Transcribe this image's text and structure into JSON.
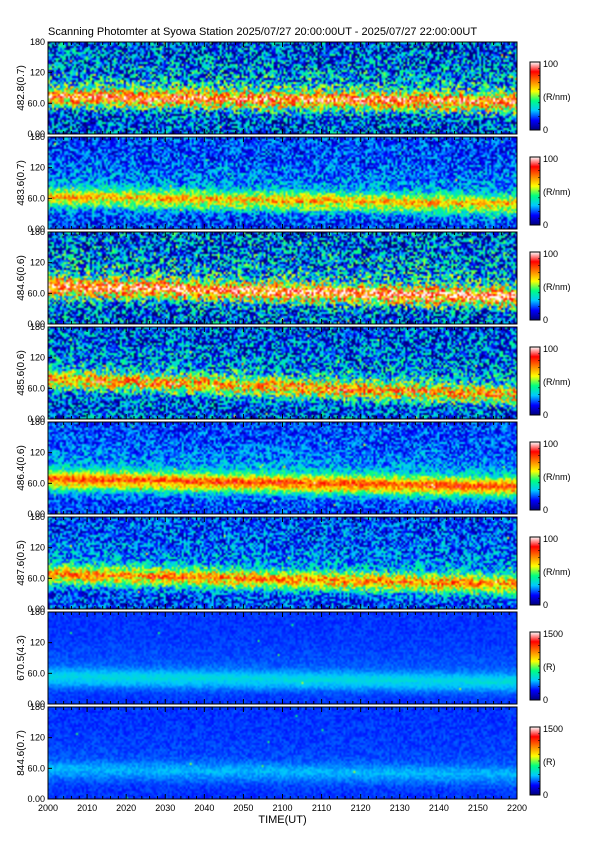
{
  "title": "Scanning Photomter at Syowa Station  2025/07/27 20:00:00UT - 2025/07/27 22:00:00UT",
  "chart_data": {
    "type": "heatmap",
    "xlabel": "TIME(UT)",
    "x_tick_labels": [
      "2000",
      "2010",
      "2020",
      "2030",
      "2040",
      "2050",
      "2100",
      "2110",
      "2120",
      "2130",
      "2140",
      "2150",
      "2200"
    ],
    "y_tick_labels": [
      "0.00",
      "60.0",
      "120",
      "180"
    ],
    "ylim": [
      0,
      180
    ],
    "colorscale": [
      "#00007a",
      "#0000ff",
      "#00c8ff",
      "#00ff80",
      "#ffff00",
      "#ff8000",
      "#ff0000",
      "#ffffff"
    ],
    "panels": [
      {
        "ylabel": "482.8(0.7)",
        "unit": "(R/nm)",
        "cbar_min": "0",
        "cbar_max": "100",
        "band_start": 70,
        "band_end": 60,
        "intensity": 0.55,
        "noise": 0.55
      },
      {
        "ylabel": "483.6(0.7)",
        "unit": "(R/nm)",
        "cbar_min": "0",
        "cbar_max": "100",
        "band_start": 60,
        "band_end": 45,
        "intensity": 0.4,
        "noise": 0.3
      },
      {
        "ylabel": "484.6(0.6)",
        "unit": "(R/nm)",
        "cbar_min": "0",
        "cbar_max": "100",
        "band_start": 70,
        "band_end": 50,
        "intensity": 0.6,
        "noise": 0.6
      },
      {
        "ylabel": "485.6(0.6)",
        "unit": "(R/nm)",
        "cbar_min": "0",
        "cbar_max": "100",
        "band_start": 75,
        "band_end": 45,
        "intensity": 0.45,
        "noise": 0.5
      },
      {
        "ylabel": "486.4(0.6)",
        "unit": "(R/nm)",
        "cbar_min": "0",
        "cbar_max": "100",
        "band_start": 65,
        "band_end": 50,
        "intensity": 0.5,
        "noise": 0.25
      },
      {
        "ylabel": "487.6(0.5)",
        "unit": "(R/nm)",
        "cbar_min": "0",
        "cbar_max": "100",
        "band_start": 65,
        "band_end": 45,
        "intensity": 0.45,
        "noise": 0.35
      },
      {
        "ylabel": "670.5(4.3)",
        "unit": "(R)",
        "cbar_min": "0",
        "cbar_max": "1500",
        "band_start": 50,
        "band_end": 40,
        "intensity": 0.12,
        "noise": 0.05
      },
      {
        "ylabel": "844.6(0.7)",
        "unit": "(R)",
        "cbar_min": "0",
        "cbar_max": "1500",
        "band_start": 55,
        "band_end": 45,
        "intensity": 0.08,
        "noise": 0.06
      }
    ]
  }
}
